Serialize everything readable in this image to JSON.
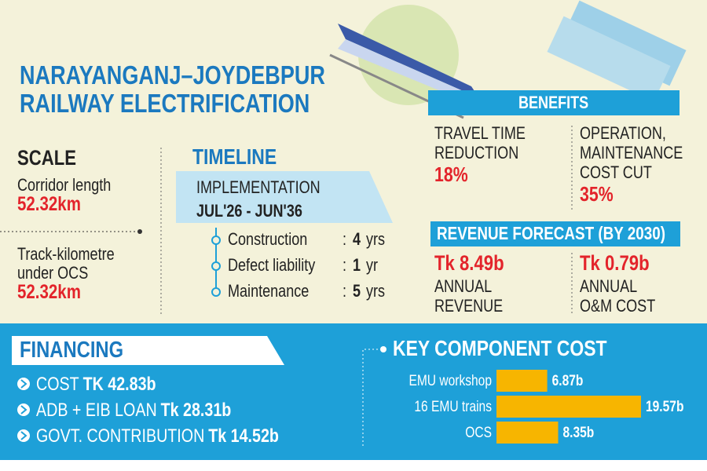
{
  "header": {
    "title": [
      "NARAYANGANJ–JOYDEBPUR",
      "RAILWAY ELECTRIFICATION"
    ]
  },
  "scale": {
    "heading": "SCALE",
    "items": [
      {
        "label": [
          "Corridor length"
        ],
        "value": "52.32km"
      },
      {
        "label": [
          "Track-kilometre",
          "under OCS"
        ],
        "value": "52.32km"
      }
    ]
  },
  "timeline": {
    "heading": "TIMELINE",
    "phase": "IMPLEMENTATION",
    "period": "JUL'26 - JUN'36",
    "separator": ":",
    "items": [
      {
        "label": "Construction",
        "duration": "4",
        "unit": "yrs"
      },
      {
        "label": "Defect liability",
        "duration": "1",
        "unit": "yr"
      },
      {
        "label": "Maintenance",
        "duration": "5",
        "unit": "yrs"
      }
    ]
  },
  "benefits": {
    "heading": "BENEFITS",
    "items": [
      {
        "label": [
          "TRAVEL TIME",
          "REDUCTION"
        ],
        "value": "18%"
      },
      {
        "label": [
          "OPERATION,",
          "MAINTENANCE",
          "COST CUT"
        ],
        "value": "35%"
      }
    ]
  },
  "revenue_forecast": {
    "heading": "REVENUE FORECAST (BY 2030)",
    "items": [
      {
        "value": "Tk 8.49b",
        "label": [
          "ANNUAL",
          "REVENUE"
        ]
      },
      {
        "value": "Tk 0.79b",
        "label": [
          "ANNUAL",
          "O&M COST"
        ]
      }
    ]
  },
  "financing": {
    "heading": "FINANCING",
    "items": [
      {
        "label": "COST",
        "value": "TK 42.83b"
      },
      {
        "label": "ADB + EIB LOAN",
        "value": "Tk 28.31b"
      },
      {
        "label": "GOVT. CONTRIBUTION",
        "value": "Tk 14.52b"
      }
    ]
  },
  "key_component_cost": {
    "title": "KEY COMPONENT COST",
    "categories": [
      "EMU workshop",
      "16 EMU trains",
      "OCS"
    ],
    "values": [
      6.87,
      19.57,
      8.35
    ],
    "value_labels": [
      "6.87b",
      "19.57b",
      "8.35b"
    ],
    "color": "#f7b500"
  }
}
